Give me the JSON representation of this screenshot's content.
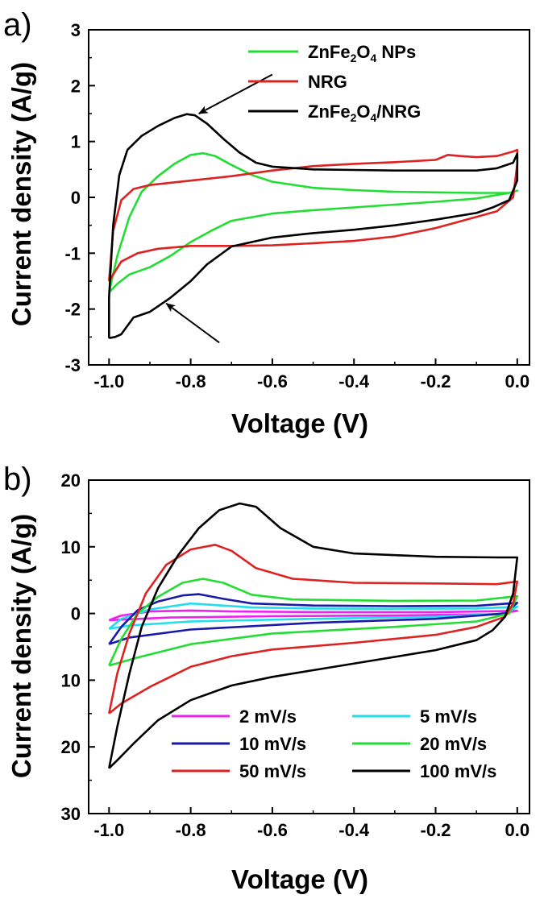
{
  "chart_data": [
    {
      "panel_letter": "a)",
      "type": "line",
      "xlabel": "Voltage (V)",
      "ylabel": "Current density (A/g)",
      "xlim": [
        -1.05,
        0.03
      ],
      "ylim": [
        -3,
        3
      ],
      "x_ticks": [
        -1.0,
        -0.8,
        -0.6,
        -0.4,
        -0.2,
        0.0
      ],
      "x_tick_labels": [
        "-1.0",
        "-0.8",
        "-0.6",
        "-0.4",
        "-0.2",
        "0.0"
      ],
      "y_ticks": [
        3,
        2,
        1,
        0,
        -1,
        -2,
        -3
      ],
      "y_tick_labels": [
        "3",
        "2",
        "1",
        "0",
        "-1",
        "-2",
        "-3"
      ],
      "legend_position": "top-right",
      "legend": [
        {
          "sub": [
            "ZnFe",
            "2",
            "O",
            "4",
            " NPs"
          ],
          "color": "#22dd33"
        },
        {
          "sub": [
            "NRG"
          ],
          "color": "#dd2222"
        },
        {
          "sub": [
            "ZnFe",
            "2",
            "O",
            "4",
            "/NRG"
          ],
          "color": "#000000"
        }
      ],
      "annotations": [
        {
          "type": "arrow",
          "note": "oxidation peak of ZnFe2O4/NRG",
          "from": [
            -0.6,
            2.2
          ],
          "to": [
            -0.78,
            1.5
          ]
        },
        {
          "type": "arrow",
          "note": "reduction peak of ZnFe2O4/NRG",
          "from": [
            -0.73,
            -2.6
          ],
          "to": [
            -0.86,
            -1.9
          ]
        }
      ],
      "series": [
        {
          "name": "ZnFe2O4 NPs",
          "color": "#22dd33",
          "points": [
            [
              -1.0,
              -1.7
            ],
            [
              -0.98,
              -1.05
            ],
            [
              -0.95,
              -0.35
            ],
            [
              -0.92,
              0.1
            ],
            [
              -0.88,
              0.38
            ],
            [
              -0.84,
              0.6
            ],
            [
              -0.8,
              0.76
            ],
            [
              -0.77,
              0.79
            ],
            [
              -0.74,
              0.74
            ],
            [
              -0.7,
              0.58
            ],
            [
              -0.65,
              0.4
            ],
            [
              -0.6,
              0.28
            ],
            [
              -0.5,
              0.17
            ],
            [
              -0.4,
              0.13
            ],
            [
              -0.3,
              0.1
            ],
            [
              -0.2,
              0.09
            ],
            [
              -0.1,
              0.08
            ],
            [
              -0.02,
              0.08
            ],
            [
              0.0,
              0.12
            ],
            [
              -0.02,
              0.08
            ],
            [
              -0.1,
              -0.02
            ],
            [
              -0.2,
              -0.08
            ],
            [
              -0.3,
              -0.13
            ],
            [
              -0.4,
              -0.18
            ],
            [
              -0.5,
              -0.23
            ],
            [
              -0.6,
              -0.29
            ],
            [
              -0.7,
              -0.42
            ],
            [
              -0.75,
              -0.6
            ],
            [
              -0.8,
              -0.8
            ],
            [
              -0.85,
              -1.05
            ],
            [
              -0.9,
              -1.25
            ],
            [
              -0.95,
              -1.38
            ],
            [
              -0.98,
              -1.55
            ],
            [
              -1.0,
              -1.7
            ]
          ]
        },
        {
          "name": "NRG",
          "color": "#dd2222",
          "points": [
            [
              -1.0,
              -1.5
            ],
            [
              -0.99,
              -0.6
            ],
            [
              -0.97,
              -0.05
            ],
            [
              -0.94,
              0.15
            ],
            [
              -0.9,
              0.22
            ],
            [
              -0.8,
              0.3
            ],
            [
              -0.7,
              0.38
            ],
            [
              -0.6,
              0.48
            ],
            [
              -0.5,
              0.56
            ],
            [
              -0.4,
              0.6
            ],
            [
              -0.3,
              0.63
            ],
            [
              -0.2,
              0.67
            ],
            [
              -0.17,
              0.76
            ],
            [
              -0.14,
              0.74
            ],
            [
              -0.1,
              0.72
            ],
            [
              -0.05,
              0.74
            ],
            [
              -0.01,
              0.82
            ],
            [
              0.0,
              0.85
            ],
            [
              0.0,
              0.6
            ],
            [
              -0.01,
              0.0
            ],
            [
              -0.05,
              -0.25
            ],
            [
              -0.1,
              -0.35
            ],
            [
              -0.15,
              -0.45
            ],
            [
              -0.2,
              -0.55
            ],
            [
              -0.3,
              -0.7
            ],
            [
              -0.4,
              -0.78
            ],
            [
              -0.5,
              -0.82
            ],
            [
              -0.6,
              -0.86
            ],
            [
              -0.7,
              -0.87
            ],
            [
              -0.8,
              -0.87
            ],
            [
              -0.88,
              -0.92
            ],
            [
              -0.93,
              -1.0
            ],
            [
              -0.97,
              -1.15
            ],
            [
              -1.0,
              -1.5
            ]
          ]
        },
        {
          "name": "ZnFe2O4/NRG",
          "color": "#000000",
          "points": [
            [
              -1.0,
              -2.52
            ],
            [
              -1.0,
              -1.8
            ],
            [
              -0.99,
              -0.5
            ],
            [
              -0.975,
              0.4
            ],
            [
              -0.955,
              0.85
            ],
            [
              -0.92,
              1.1
            ],
            [
              -0.88,
              1.28
            ],
            [
              -0.84,
              1.42
            ],
            [
              -0.81,
              1.49
            ],
            [
              -0.79,
              1.47
            ],
            [
              -0.76,
              1.32
            ],
            [
              -0.72,
              1.05
            ],
            [
              -0.68,
              0.8
            ],
            [
              -0.64,
              0.62
            ],
            [
              -0.6,
              0.55
            ],
            [
              -0.5,
              0.5
            ],
            [
              -0.4,
              0.49
            ],
            [
              -0.3,
              0.48
            ],
            [
              -0.2,
              0.48
            ],
            [
              -0.1,
              0.48
            ],
            [
              -0.05,
              0.52
            ],
            [
              -0.01,
              0.62
            ],
            [
              0.0,
              0.78
            ],
            [
              0.0,
              0.3
            ],
            [
              -0.02,
              -0.05
            ],
            [
              -0.06,
              -0.18
            ],
            [
              -0.1,
              -0.28
            ],
            [
              -0.2,
              -0.4
            ],
            [
              -0.3,
              -0.5
            ],
            [
              -0.4,
              -0.58
            ],
            [
              -0.5,
              -0.64
            ],
            [
              -0.6,
              -0.72
            ],
            [
              -0.7,
              -0.88
            ],
            [
              -0.76,
              -1.2
            ],
            [
              -0.8,
              -1.5
            ],
            [
              -0.85,
              -1.8
            ],
            [
              -0.9,
              -2.05
            ],
            [
              -0.94,
              -2.15
            ],
            [
              -0.97,
              -2.45
            ],
            [
              -0.985,
              -2.5
            ],
            [
              -1.0,
              -2.52
            ]
          ]
        }
      ]
    },
    {
      "panel_letter": "b)",
      "type": "line",
      "xlabel": "Voltage (V)",
      "ylabel": "Current density (A/g)",
      "xlim": [
        -1.05,
        0.03
      ],
      "ylim": [
        -30,
        20
      ],
      "x_ticks": [
        -1.0,
        -0.8,
        -0.6,
        -0.4,
        -0.2,
        0.0
      ],
      "x_tick_labels": [
        "-1.0",
        "-0.8",
        "-0.6",
        "-0.4",
        "-0.2",
        "0.0"
      ],
      "y_ticks": [
        20,
        10,
        0,
        -10,
        -20,
        -30
      ],
      "y_tick_labels": [
        "20",
        "10",
        "0",
        "10",
        "20",
        "30"
      ],
      "legend_position": "bottom-right",
      "legend": [
        {
          "label": "2  mV/s",
          "color": "#ee22ee"
        },
        {
          "label": "5  mV/s",
          "color": "#22ddee"
        },
        {
          "label": "10 mV/s",
          "color": "#1a1aaa"
        },
        {
          "label": "20  mV/s",
          "color": "#22dd33"
        },
        {
          "label": "50 mV/s",
          "color": "#dd2222"
        },
        {
          "label": "100 mV/s",
          "color": "#000000"
        }
      ],
      "series": [
        {
          "name": "2 mV/s",
          "color": "#ee22ee",
          "points": [
            [
              -1.0,
              -1.0
            ],
            [
              -0.97,
              -0.3
            ],
            [
              -0.9,
              0.3
            ],
            [
              -0.8,
              0.45
            ],
            [
              -0.7,
              0.3
            ],
            [
              -0.5,
              0.2
            ],
            [
              -0.2,
              0.2
            ],
            [
              0.0,
              0.4
            ],
            [
              -0.05,
              -0.1
            ],
            [
              -0.3,
              -0.3
            ],
            [
              -0.6,
              -0.4
            ],
            [
              -0.85,
              -0.6
            ],
            [
              -1.0,
              -1.0
            ]
          ]
        },
        {
          "name": "5 mV/s",
          "color": "#22ddee",
          "points": [
            [
              -1.0,
              -2.3
            ],
            [
              -0.97,
              -0.8
            ],
            [
              -0.9,
              0.6
            ],
            [
              -0.8,
              1.5
            ],
            [
              -0.75,
              1.3
            ],
            [
              -0.65,
              0.9
            ],
            [
              -0.5,
              0.75
            ],
            [
              -0.3,
              0.7
            ],
            [
              -0.1,
              0.75
            ],
            [
              0.0,
              1.0
            ],
            [
              -0.03,
              0.0
            ],
            [
              -0.2,
              -0.5
            ],
            [
              -0.5,
              -0.8
            ],
            [
              -0.8,
              -1.2
            ],
            [
              -0.95,
              -1.8
            ],
            [
              -1.0,
              -2.3
            ]
          ]
        },
        {
          "name": "10 mV/s",
          "color": "#1a1aaa",
          "points": [
            [
              -1.0,
              -4.6
            ],
            [
              -0.97,
              -2.0
            ],
            [
              -0.93,
              0.5
            ],
            [
              -0.88,
              1.8
            ],
            [
              -0.82,
              2.7
            ],
            [
              -0.78,
              2.9
            ],
            [
              -0.72,
              2.2
            ],
            [
              -0.65,
              1.5
            ],
            [
              -0.5,
              1.2
            ],
            [
              -0.3,
              1.1
            ],
            [
              -0.1,
              1.15
            ],
            [
              0.0,
              1.6
            ],
            [
              -0.03,
              0.0
            ],
            [
              -0.2,
              -0.8
            ],
            [
              -0.5,
              -1.4
            ],
            [
              -0.8,
              -2.4
            ],
            [
              -0.95,
              -3.6
            ],
            [
              -1.0,
              -4.6
            ]
          ]
        },
        {
          "name": "20 mV/s",
          "color": "#22dd33",
          "points": [
            [
              -1.0,
              -7.8
            ],
            [
              -0.97,
              -3.8
            ],
            [
              -0.93,
              0.0
            ],
            [
              -0.88,
              2.5
            ],
            [
              -0.82,
              4.6
            ],
            [
              -0.77,
              5.2
            ],
            [
              -0.72,
              4.6
            ],
            [
              -0.65,
              2.8
            ],
            [
              -0.55,
              2.1
            ],
            [
              -0.3,
              1.9
            ],
            [
              -0.1,
              1.95
            ],
            [
              0.0,
              2.6
            ],
            [
              -0.02,
              0.0
            ],
            [
              -0.1,
              -1.2
            ],
            [
              -0.3,
              -2.0
            ],
            [
              -0.6,
              -3.0
            ],
            [
              -0.8,
              -4.6
            ],
            [
              -0.93,
              -6.6
            ],
            [
              -1.0,
              -7.8
            ]
          ]
        },
        {
          "name": "50 mV/s",
          "color": "#dd2222",
          "points": [
            [
              -1.0,
              -15.0
            ],
            [
              -0.98,
              -9.0
            ],
            [
              -0.95,
              -3.0
            ],
            [
              -0.91,
              3.0
            ],
            [
              -0.86,
              7.3
            ],
            [
              -0.8,
              9.6
            ],
            [
              -0.74,
              10.3
            ],
            [
              -0.7,
              9.4
            ],
            [
              -0.64,
              6.8
            ],
            [
              -0.55,
              5.2
            ],
            [
              -0.4,
              4.6
            ],
            [
              -0.2,
              4.5
            ],
            [
              -0.05,
              4.4
            ],
            [
              0.0,
              4.8
            ],
            [
              -0.01,
              1.5
            ],
            [
              -0.03,
              -0.5
            ],
            [
              -0.1,
              -2.0
            ],
            [
              -0.2,
              -3.2
            ],
            [
              -0.4,
              -4.4
            ],
            [
              -0.6,
              -5.4
            ],
            [
              -0.7,
              -6.4
            ],
            [
              -0.8,
              -8.0
            ],
            [
              -0.9,
              -11.0
            ],
            [
              -0.97,
              -13.5
            ],
            [
              -1.0,
              -15.0
            ]
          ]
        },
        {
          "name": "100 mV/s",
          "color": "#000000",
          "points": [
            [
              -1.0,
              -23.2
            ],
            [
              -0.98,
              -17.0
            ],
            [
              -0.95,
              -9.0
            ],
            [
              -0.92,
              -2.0
            ],
            [
              -0.88,
              3.8
            ],
            [
              -0.83,
              8.8
            ],
            [
              -0.78,
              12.8
            ],
            [
              -0.73,
              15.5
            ],
            [
              -0.68,
              16.5
            ],
            [
              -0.64,
              16.0
            ],
            [
              -0.58,
              12.8
            ],
            [
              -0.5,
              10.0
            ],
            [
              -0.4,
              9.0
            ],
            [
              -0.2,
              8.5
            ],
            [
              -0.05,
              8.4
            ],
            [
              0.0,
              8.4
            ],
            [
              -0.01,
              3.0
            ],
            [
              -0.03,
              -0.5
            ],
            [
              -0.06,
              -2.5
            ],
            [
              -0.1,
              -4.0
            ],
            [
              -0.2,
              -5.5
            ],
            [
              -0.35,
              -7.0
            ],
            [
              -0.5,
              -8.5
            ],
            [
              -0.6,
              -9.5
            ],
            [
              -0.7,
              -10.8
            ],
            [
              -0.8,
              -13.0
            ],
            [
              -0.88,
              -16.0
            ],
            [
              -0.94,
              -19.5
            ],
            [
              -0.98,
              -22.0
            ],
            [
              -1.0,
              -23.2
            ]
          ]
        }
      ]
    }
  ]
}
